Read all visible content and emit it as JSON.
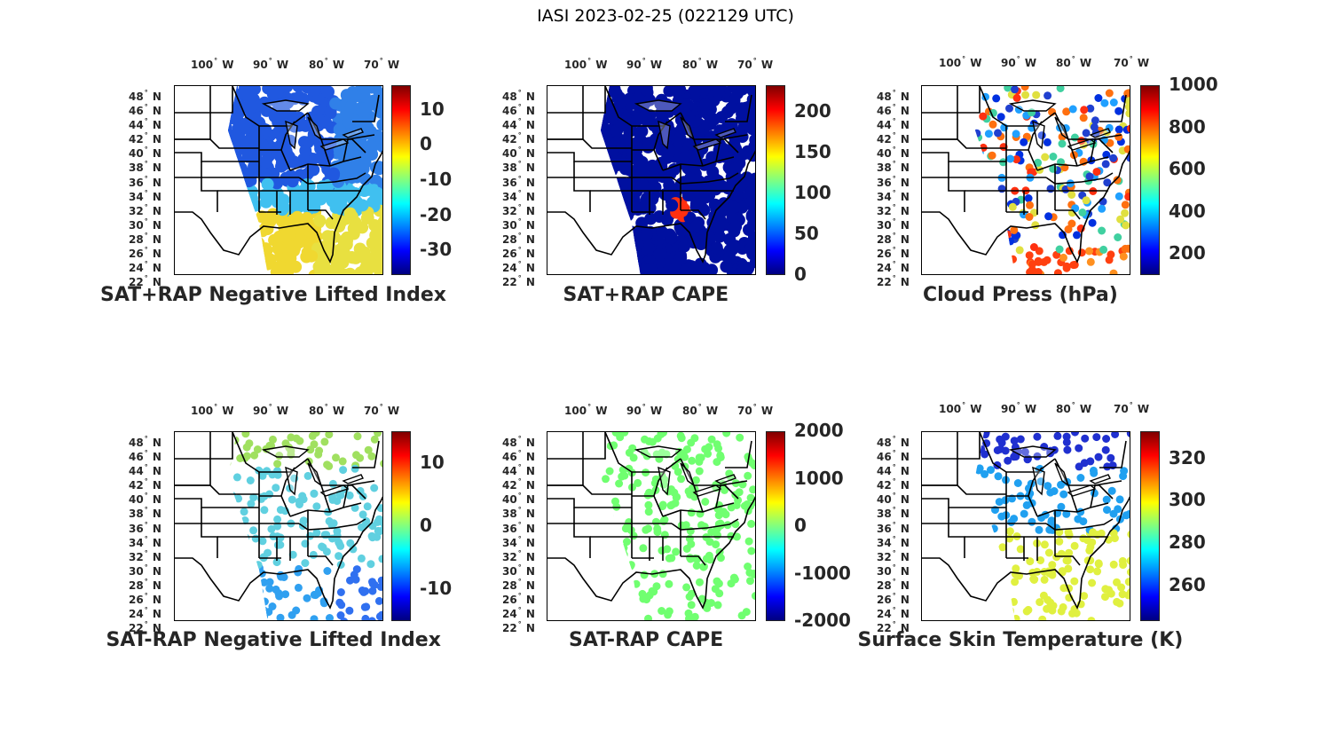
{
  "figure_title": "IASI 2023-02-25 (022129 UTC)",
  "lon_labels": [
    "100",
    "90",
    "80",
    "70"
  ],
  "lon_hemisphere": "W",
  "lat_labels": [
    "48",
    "46",
    "44",
    "42",
    "40",
    "38",
    "36",
    "34",
    "32",
    "30",
    "28",
    "26",
    "24",
    "22"
  ],
  "lat_hemisphere": "N",
  "colormap": "jet",
  "panels": [
    {
      "title": "SAT+RAP Negative Lifted Index",
      "colorbar_ticks": [
        "10",
        "0",
        "-10",
        "-20",
        "-30"
      ],
      "colorbar_range": [
        -37,
        17
      ]
    },
    {
      "title": "SAT+RAP CAPE",
      "colorbar_ticks": [
        "200",
        "150",
        "100",
        "50",
        "0"
      ],
      "colorbar_range": [
        0,
        232
      ]
    },
    {
      "title": "Cloud Press (hPa)",
      "colorbar_ticks": [
        "1000",
        "800",
        "600",
        "400",
        "200"
      ],
      "colorbar_range": [
        100,
        1000
      ]
    },
    {
      "title": "SAT-RAP Negative Lifted Index",
      "colorbar_ticks": [
        "10",
        "0",
        "-10"
      ],
      "colorbar_range": [
        -15,
        15
      ]
    },
    {
      "title": "SAT-RAP CAPE",
      "colorbar_ticks": [
        "2000",
        "1000",
        "0",
        "-1000",
        "-2000"
      ],
      "colorbar_range": [
        -2000,
        2000
      ]
    },
    {
      "title": "Surface Skin Temperature (K)",
      "colorbar_ticks": [
        "320",
        "300",
        "280",
        "260"
      ],
      "colorbar_range": [
        243,
        333
      ]
    }
  ]
}
